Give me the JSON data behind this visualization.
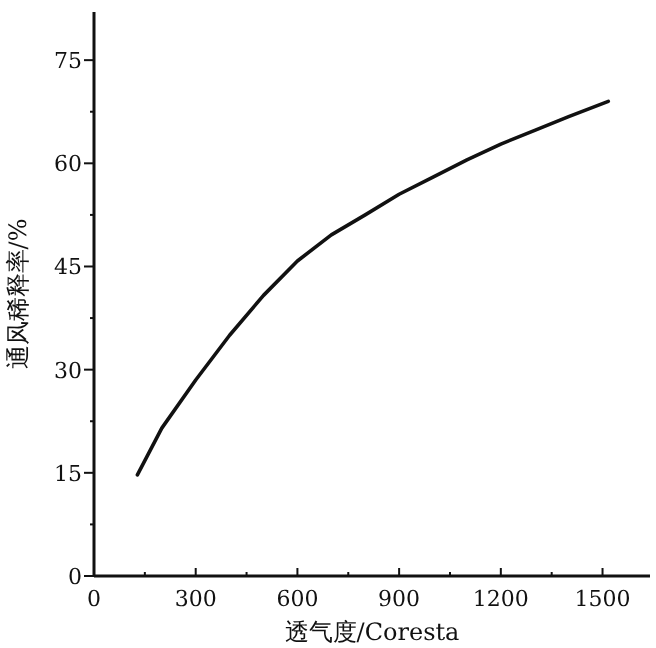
{
  "chart_data": {
    "type": "line",
    "xlabel": "透气度/Coresta",
    "ylabel": "通风稀释率/%",
    "xlim": [
      0,
      1640
    ],
    "ylim": [
      0,
      82
    ],
    "xticks": [
      0,
      {
        "value": 150,
        "label": null
      },
      300,
      {
        "value": 450,
        "label": null
      },
      600,
      {
        "value": 750,
        "label": null
      },
      900,
      {
        "value": 1050,
        "label": null
      },
      1200,
      {
        "value": 1350,
        "label": null
      },
      1500
    ],
    "yticks": [
      0,
      {
        "value": 7.5,
        "label": null
      },
      15,
      {
        "value": 22.5,
        "label": null
      },
      30,
      {
        "value": 37.5,
        "label": null
      },
      45,
      {
        "value": 52.5,
        "label": null
      },
      60,
      {
        "value": 67.5,
        "label": null
      },
      75
    ],
    "grid": false,
    "marker": "none",
    "line_style": "solid",
    "series": [
      {
        "color": "#111111",
        "x": [
          128,
          200,
          300,
          400,
          500,
          600,
          700,
          800,
          900,
          1000,
          1100,
          1200,
          1300,
          1400,
          1517
        ],
        "values": [
          14.7,
          21.5,
          28.5,
          35,
          40.8,
          45.8,
          49.6,
          52.5,
          55.5,
          58,
          60.5,
          62.8,
          64.8,
          66.8,
          69
        ]
      }
    ]
  }
}
